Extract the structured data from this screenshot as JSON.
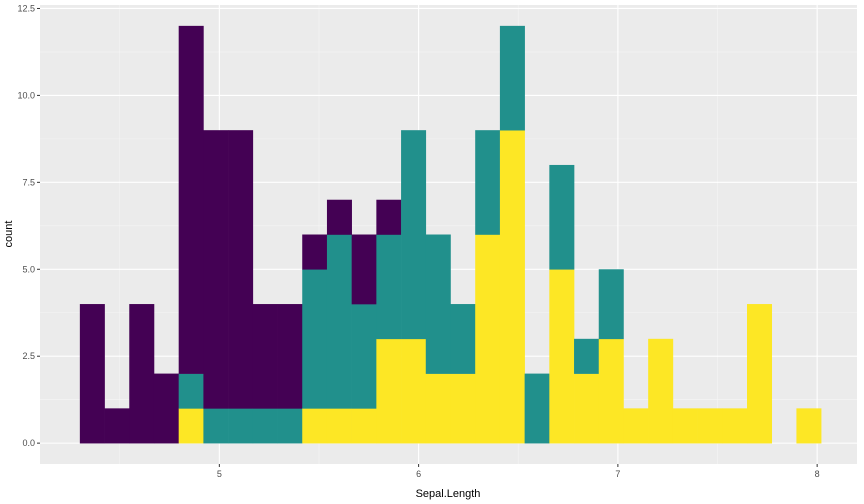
{
  "chart_data": {
    "type": "bar",
    "subtype": "stacked-histogram",
    "xlabel": "Sepal.Length",
    "ylabel": "count",
    "xlim": [
      4.1,
      8.2
    ],
    "ylim": [
      -0.6,
      12.6
    ],
    "x_ticks": [
      5,
      6,
      7,
      8
    ],
    "x_tick_labels": [
      "5",
      "6",
      "7",
      "8"
    ],
    "y_ticks": [
      0,
      2.5,
      5,
      7.5,
      10,
      12.5
    ],
    "y_tick_labels": [
      "0.0",
      "2.5",
      "5.0",
      "7.5",
      "10.0",
      "12.5"
    ],
    "grid": true,
    "legend": "none",
    "bin_width": 0.124,
    "bin_left_edges": [
      4.3,
      4.424,
      4.548,
      4.672,
      4.796,
      4.92,
      5.044,
      5.168,
      5.292,
      5.416,
      5.54,
      5.664,
      5.788,
      5.912,
      6.036,
      6.16,
      6.284,
      6.408,
      6.532,
      6.656,
      6.78,
      6.904,
      7.028,
      7.152,
      7.276,
      7.4,
      7.524,
      7.648,
      7.772,
      7.896
    ],
    "series": [
      {
        "color": "#440154",
        "values": [
          4,
          1,
          4,
          2,
          10,
          8,
          8,
          3,
          3,
          1,
          1,
          2,
          1,
          0,
          0,
          0,
          0,
          0,
          0,
          0,
          0,
          0,
          0,
          0,
          0,
          0,
          0,
          0,
          0,
          0
        ]
      },
      {
        "color": "#21908C",
        "values": [
          0,
          0,
          0,
          0,
          1,
          1,
          1,
          1,
          1,
          4,
          5,
          3,
          3,
          6,
          4,
          2,
          3,
          3,
          2,
          3,
          1,
          2,
          0,
          0,
          0,
          0,
          0,
          0,
          0,
          0
        ]
      },
      {
        "color": "#FDE725",
        "values": [
          0,
          0,
          0,
          0,
          1,
          0,
          0,
          0,
          0,
          1,
          1,
          1,
          3,
          3,
          2,
          2,
          6,
          9,
          0,
          5,
          2,
          3,
          1,
          3,
          1,
          1,
          1,
          4,
          0,
          1
        ]
      }
    ]
  }
}
